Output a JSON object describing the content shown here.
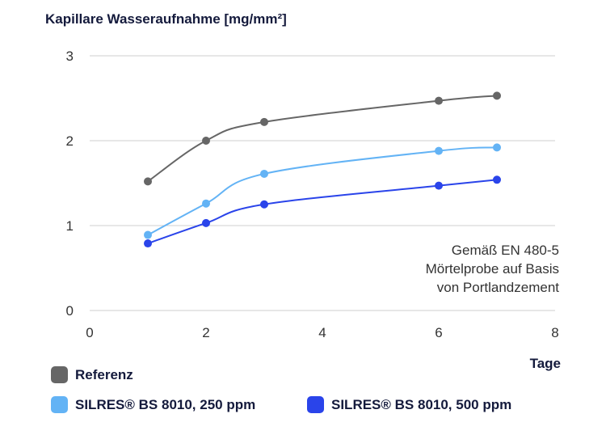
{
  "chart_data": {
    "type": "line",
    "title": "Kapillare Wasseraufnahme [mg/mm²]",
    "xlabel": "Tage",
    "ylabel": "",
    "xlim": [
      0,
      8
    ],
    "ylim": [
      0,
      3
    ],
    "x_ticks": [
      0,
      2,
      4,
      6,
      8
    ],
    "y_ticks": [
      0,
      1,
      2,
      3
    ],
    "grid": "horizontal",
    "legend": "bottom",
    "annotation": [
      "Gemäß EN 480-5",
      "Mörtelprobe auf Basis",
      "von Portlandzement"
    ],
    "series": [
      {
        "name": "Referenz",
        "color": "#666666",
        "x": [
          1,
          2,
          3,
          6,
          7
        ],
        "y": [
          1.52,
          2.0,
          2.22,
          2.47,
          2.53
        ]
      },
      {
        "name": "SILRES® BS 8010, 250 ppm",
        "color": "#63b3f5",
        "x": [
          1,
          2,
          3,
          6,
          7
        ],
        "y": [
          0.89,
          1.26,
          1.61,
          1.88,
          1.92
        ]
      },
      {
        "name": "SILRES® BS 8010, 500 ppm",
        "color": "#2a44ea",
        "x": [
          1,
          2,
          3,
          6,
          7
        ],
        "y": [
          0.79,
          1.03,
          1.25,
          1.47,
          1.54
        ]
      }
    ]
  }
}
